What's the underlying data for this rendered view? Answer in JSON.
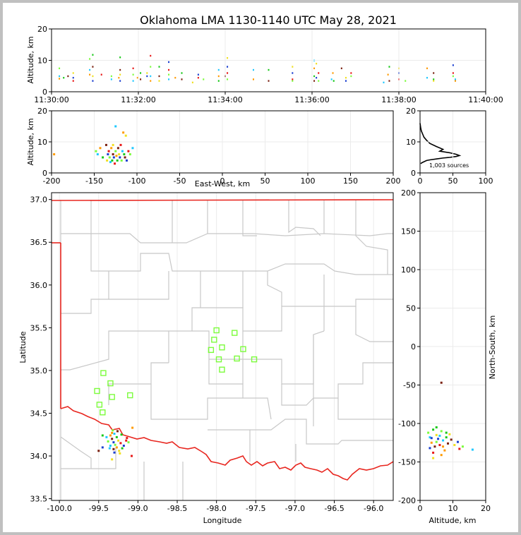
{
  "title": "Oklahoma LMA 1130-1140 UTC May 28, 2021",
  "colors": {
    "border": "#e8261f",
    "county": "#c8c8c8",
    "station": "#7cfc3c",
    "grid": "#ebebeb",
    "sources": [
      "#1ec8ff",
      "#1a3fd0",
      "#18c818",
      "#7cfc3c",
      "#f0e020",
      "#ff9a00",
      "#e81818",
      "#7a2010"
    ]
  },
  "chart_data": [
    {
      "id": "time_height",
      "type": "scatter",
      "ylabel": "Altitude, km",
      "xlim_label": [
        "11:30:00",
        "11:40:00"
      ],
      "xticks": [
        "11:30:00",
        "11:32:00",
        "11:34:00",
        "11:36:00",
        "11:38:00",
        "11:40:00"
      ],
      "xtick_minutes": [
        0,
        2,
        4,
        6,
        8,
        10
      ],
      "ylim": [
        0,
        20
      ],
      "yticks": [
        0,
        10,
        20
      ],
      "points": [
        [
          1.8,
          7.5
        ],
        [
          1.8,
          5
        ],
        [
          1.8,
          4.2
        ],
        [
          2.8,
          4.5
        ],
        [
          3.8,
          5
        ],
        [
          5,
          6
        ],
        [
          5,
          4.5
        ],
        [
          5,
          3.5
        ],
        [
          8.8,
          10.5
        ],
        [
          8.8,
          7
        ],
        [
          8.8,
          5.5
        ],
        [
          9.5,
          11.8
        ],
        [
          9.5,
          8
        ],
        [
          9.5,
          5
        ],
        [
          9.5,
          3.5
        ],
        [
          11.5,
          5.5
        ],
        [
          13.8,
          5
        ],
        [
          13.8,
          4
        ],
        [
          15.5,
          4.5
        ],
        [
          15.8,
          11
        ],
        [
          15.8,
          7
        ],
        [
          15.8,
          5.5
        ],
        [
          15.8,
          3.5
        ],
        [
          18.8,
          7.5
        ],
        [
          18.8,
          5.5
        ],
        [
          18.8,
          3.5
        ],
        [
          19.8,
          4.5
        ],
        [
          20.5,
          6
        ],
        [
          20.5,
          4
        ],
        [
          22,
          6
        ],
        [
          22,
          5
        ],
        [
          22.8,
          11.5
        ],
        [
          22.8,
          8
        ],
        [
          22.8,
          5
        ],
        [
          22.8,
          3.5
        ],
        [
          24.8,
          8
        ],
        [
          24.8,
          5
        ],
        [
          24.8,
          3.5
        ],
        [
          27,
          9.5
        ],
        [
          27,
          7
        ],
        [
          27,
          5.5
        ],
        [
          27,
          4
        ],
        [
          28.5,
          4.5
        ],
        [
          30,
          6
        ],
        [
          30,
          4
        ],
        [
          32.5,
          3
        ],
        [
          33.8,
          5.5
        ],
        [
          33.8,
          4.5
        ],
        [
          35,
          4
        ],
        [
          38.5,
          7
        ],
        [
          38.5,
          5
        ],
        [
          38.5,
          3.5
        ],
        [
          40,
          5
        ],
        [
          40.5,
          10.8
        ],
        [
          40.5,
          8
        ],
        [
          40.5,
          6
        ],
        [
          40.5,
          4
        ],
        [
          46.5,
          7
        ],
        [
          46.5,
          4
        ],
        [
          50,
          7
        ],
        [
          50,
          3.5
        ],
        [
          55.5,
          8
        ],
        [
          55.5,
          6
        ],
        [
          55.5,
          4
        ],
        [
          55.5,
          3.5
        ],
        [
          60.5,
          10
        ],
        [
          60.5,
          7.5
        ],
        [
          60.5,
          5
        ],
        [
          60.5,
          3.5
        ],
        [
          61,
          9
        ],
        [
          61,
          4.5
        ],
        [
          61.5,
          6
        ],
        [
          61.5,
          3.5
        ],
        [
          64.5,
          4
        ],
        [
          64.8,
          6
        ],
        [
          65,
          3.5
        ],
        [
          66.8,
          7.5
        ],
        [
          67.8,
          4.5
        ],
        [
          67.8,
          3.5
        ],
        [
          69,
          6
        ],
        [
          69,
          5
        ],
        [
          76.5,
          3
        ],
        [
          77.5,
          5.5
        ],
        [
          77.8,
          8
        ],
        [
          77.8,
          3.5
        ],
        [
          80,
          7.5
        ],
        [
          80,
          6
        ],
        [
          80,
          4
        ],
        [
          81.5,
          3.5
        ],
        [
          86.5,
          4.5
        ],
        [
          86.5,
          7.5
        ],
        [
          88,
          4
        ],
        [
          88,
          6
        ],
        [
          88,
          3.5
        ],
        [
          92.5,
          8.5
        ],
        [
          92.5,
          6
        ],
        [
          92.5,
          5
        ],
        [
          93,
          4
        ],
        [
          93,
          3.5
        ]
      ]
    },
    {
      "id": "ew_alt",
      "type": "scatter",
      "xlabel": "East-West, km",
      "ylabel": "Altitude, km",
      "xlim": [
        -200,
        200
      ],
      "xticks": [
        -200,
        -150,
        -100,
        -50,
        0,
        50,
        100,
        150,
        200
      ],
      "ylim": [
        0,
        20
      ],
      "yticks": [
        0,
        10,
        20
      ],
      "points": [
        [
          -148,
          7
        ],
        [
          -146,
          6
        ],
        [
          -143,
          8
        ],
        [
          -140,
          5
        ],
        [
          -136,
          9
        ],
        [
          -135,
          4
        ],
        [
          -134,
          6
        ],
        [
          -133,
          7
        ],
        [
          -132,
          5
        ],
        [
          -131,
          3.5
        ],
        [
          -130,
          8
        ],
        [
          -129,
          4
        ],
        [
          -128,
          6
        ],
        [
          -128,
          9
        ],
        [
          -127,
          5
        ],
        [
          -126,
          3
        ],
        [
          -125,
          7
        ],
        [
          -125,
          15
        ],
        [
          -124,
          5.5
        ],
        [
          -123,
          4
        ],
        [
          -122,
          8
        ],
        [
          -121,
          6
        ],
        [
          -120,
          5
        ],
        [
          -119,
          9
        ],
        [
          -118,
          4
        ],
        [
          -117,
          7
        ],
        [
          -116,
          13
        ],
        [
          -115,
          6
        ],
        [
          -114,
          5
        ],
        [
          -113,
          12
        ],
        [
          -112,
          4
        ],
        [
          -110,
          7
        ],
        [
          -108,
          6
        ],
        [
          -105,
          8
        ],
        [
          -197,
          6
        ]
      ]
    },
    {
      "id": "alt_hist",
      "type": "line",
      "xlim": [
        0,
        100
      ],
      "xticks": [
        0,
        50,
        100
      ],
      "ylim": [
        0,
        20
      ],
      "yticks": [
        0,
        10,
        20
      ],
      "x": [
        1,
        3,
        6,
        10,
        15,
        25,
        35,
        45,
        55,
        60,
        55,
        45,
        30,
        35,
        25,
        15,
        10,
        6,
        4,
        2,
        1,
        0
      ],
      "y": [
        3,
        3.3,
        3.6,
        4,
        4.2,
        4.5,
        4.8,
        5,
        5.3,
        5.6,
        6,
        6.5,
        7,
        7.6,
        8.5,
        9.5,
        10.5,
        11.5,
        12.5,
        13.5,
        14.5,
        16
      ],
      "annotation": "1,003 sources"
    },
    {
      "id": "plan_view",
      "type": "scatter",
      "xlabel": "Longitude",
      "ylabel": "Latitude",
      "xlim": [
        -100.1,
        -95.75
      ],
      "xticks": [
        -100.0,
        -99.5,
        -99.0,
        -98.5,
        -98.0,
        -97.5,
        -97.0,
        -96.5,
        -96.0
      ],
      "xtick_labels": [
        "-100.0",
        "-99.5",
        "-99.0",
        "-98.5",
        "-98.0",
        "-97.5",
        "-97.0",
        "-96.5",
        "-96.0"
      ],
      "ylim": [
        33.48,
        37.08
      ],
      "yticks": [
        33.5,
        34.0,
        34.5,
        35.0,
        35.5,
        36.0,
        36.5,
        37.0
      ],
      "ytick_labels": [
        "33.5",
        "34.0",
        "34.5",
        "35.0",
        "35.5",
        "36.0",
        "36.5",
        "37.0"
      ],
      "stations": [
        [
          -99.44,
          34.97
        ],
        [
          -99.35,
          34.85
        ],
        [
          -99.52,
          34.76
        ],
        [
          -99.33,
          34.69
        ],
        [
          -99.49,
          34.6
        ],
        [
          -99.45,
          34.51
        ],
        [
          -99.1,
          34.71
        ],
        [
          -98.0,
          35.47
        ],
        [
          -97.77,
          35.44
        ],
        [
          -98.03,
          35.36
        ],
        [
          -97.93,
          35.27
        ],
        [
          -98.07,
          35.24
        ],
        [
          -97.66,
          35.25
        ],
        [
          -97.97,
          35.13
        ],
        [
          -97.74,
          35.14
        ],
        [
          -97.52,
          35.13
        ],
        [
          -97.93,
          35.01
        ]
      ],
      "points": [
        [
          -99.32,
          34.3
        ],
        [
          -99.3,
          34.26
        ],
        [
          -99.35,
          34.24
        ],
        [
          -99.27,
          34.22
        ],
        [
          -99.33,
          34.2
        ],
        [
          -99.25,
          34.18
        ],
        [
          -99.31,
          34.16
        ],
        [
          -99.22,
          34.15
        ],
        [
          -99.29,
          34.13
        ],
        [
          -99.35,
          34.12
        ],
        [
          -99.27,
          34.1
        ],
        [
          -99.2,
          34.09
        ],
        [
          -99.31,
          34.08
        ],
        [
          -99.24,
          34.06
        ],
        [
          -99.18,
          34.12
        ],
        [
          -99.15,
          34.18
        ],
        [
          -99.38,
          34.17
        ],
        [
          -99.36,
          34.09
        ],
        [
          -99.33,
          34.27
        ],
        [
          -99.21,
          34.25
        ],
        [
          -99.26,
          34.29
        ],
        [
          -99.23,
          34.03
        ],
        [
          -99.3,
          34.04
        ],
        [
          -99.14,
          34.21
        ],
        [
          -99.12,
          34.16
        ],
        [
          -99.4,
          34.22
        ],
        [
          -99.07,
          34.33
        ],
        [
          -99.45,
          34.24
        ],
        [
          -99.5,
          34.06
        ],
        [
          -99.33,
          33.96
        ],
        [
          -99.45,
          34.1
        ],
        [
          -99.08,
          34.0
        ]
      ]
    },
    {
      "id": "ns_alt",
      "type": "scatter",
      "xlabel": "Altitude, km",
      "ylabel": "North-South, km",
      "xlim": [
        0,
        20
      ],
      "xticks": [
        0,
        10,
        20
      ],
      "ylim": [
        -200,
        200
      ],
      "yticks": [
        -200,
        -150,
        -100,
        -50,
        0,
        50,
        100,
        150,
        200
      ],
      "points": [
        [
          2.5,
          -112
        ],
        [
          3,
          -118
        ],
        [
          3.5,
          -125
        ],
        [
          4,
          -108
        ],
        [
          4.5,
          -130
        ],
        [
          5,
          -115
        ],
        [
          5.5,
          -120
        ],
        [
          6,
          -128
        ],
        [
          6.5,
          -110
        ],
        [
          7,
          -122
        ],
        [
          7.5,
          -135
        ],
        [
          8,
          -118
        ],
        [
          8.5,
          -126
        ],
        [
          9,
          -114
        ],
        [
          3,
          -132
        ],
        [
          4,
          -138
        ],
        [
          5,
          -124
        ],
        [
          6,
          -116
        ],
        [
          7,
          -130
        ],
        [
          8,
          -112
        ],
        [
          9.5,
          -121
        ],
        [
          10.5,
          -128
        ],
        [
          11.5,
          -124
        ],
        [
          12,
          -133
        ],
        [
          13,
          -130
        ],
        [
          16,
          -134
        ],
        [
          6.5,
          -141
        ],
        [
          5,
          -105
        ],
        [
          6.5,
          -47
        ],
        [
          4,
          -145
        ],
        [
          3.5,
          -119
        ]
      ]
    }
  ]
}
